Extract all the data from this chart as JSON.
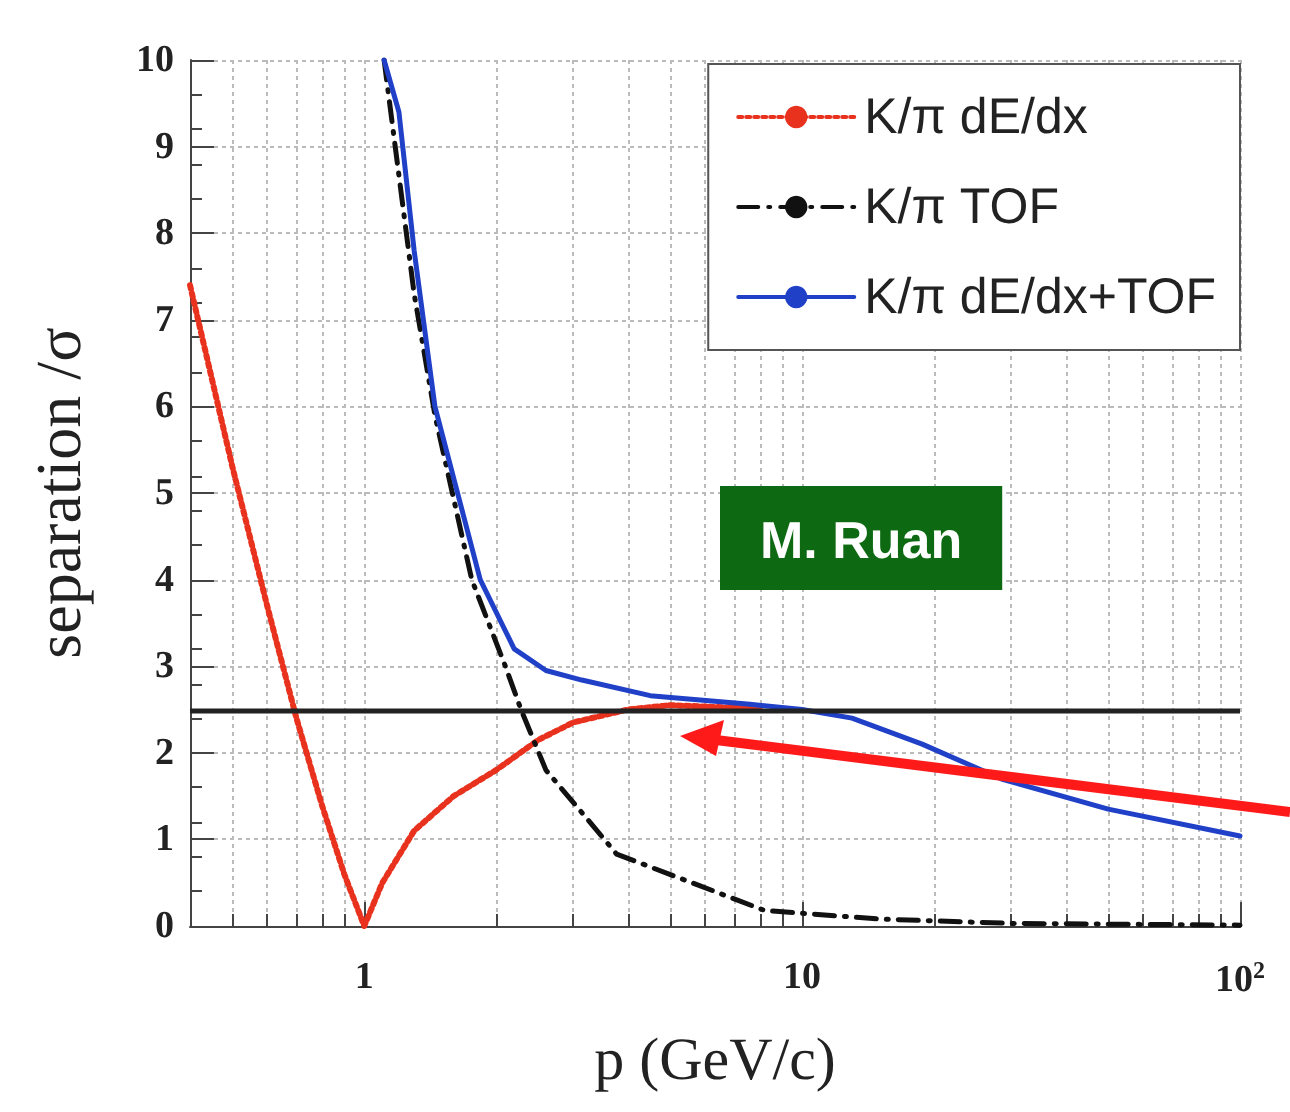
{
  "chart_data": {
    "type": "line",
    "xlabel": "p (GeV/c)",
    "ylabel": "separation /σ",
    "xlim": [
      0.4,
      100
    ],
    "ylim": [
      0,
      10
    ],
    "xticks": [
      1,
      10,
      {
        "value": 100,
        "label": "10$^{2}$"
      }
    ],
    "yticks": [
      0,
      1,
      2,
      3,
      4,
      5,
      6,
      7,
      8,
      9,
      10
    ],
    "log": "x",
    "grid": true,
    "legend": "top right",
    "marker": "none",
    "series": [
      {
        "name": "K/π dE/dx",
        "color": "#e8321e",
        "line_style": "dotted",
        "x": [
          0.4,
          0.5,
          0.6,
          0.7,
          0.8,
          0.9,
          1,
          1.1,
          1.3,
          1.6,
          2,
          2.5,
          3,
          4,
          5,
          7,
          8
        ],
        "values": [
          7.4,
          5.3,
          3.7,
          2.4,
          1.4,
          0.6,
          0,
          0.5,
          1.1,
          1.5,
          1.8,
          2.15,
          2.35,
          2.5,
          2.55,
          2.52,
          2.5
        ]
      },
      {
        "name": "K/π TOF",
        "color": "#111111",
        "line_style": "dashed",
        "x": [
          1.11,
          1.3,
          1.45,
          1.76,
          2.1,
          2.28,
          2.6,
          3.25,
          3.77,
          5.4,
          8.2,
          15,
          30,
          100
        ],
        "values": [
          10,
          7.3,
          5.9,
          4,
          3,
          2.5,
          1.8,
          1.22,
          0.83,
          0.53,
          0.18,
          0.08,
          0.03,
          0.01
        ]
      },
      {
        "name": "K/π dE/dx+TOF",
        "color": "#2040c8",
        "line_style": "solid",
        "x": [
          1.11,
          1.2,
          1.3,
          1.45,
          1.84,
          2.2,
          2.6,
          3.14,
          4.5,
          7.6,
          10,
          13,
          18.8,
          28.8,
          50,
          100
        ],
        "values": [
          10,
          9.4,
          7.8,
          6,
          4,
          3.2,
          2.95,
          2.84,
          2.66,
          2.56,
          2.5,
          2.4,
          2.1,
          1.69,
          1.35,
          1.04
        ]
      }
    ],
    "ref_lines": [
      {
        "axis": "y",
        "value": 2.5,
        "color": "#222222",
        "line_style": "solid"
      }
    ],
    "annotations": [
      "M. Ruan"
    ]
  }
}
